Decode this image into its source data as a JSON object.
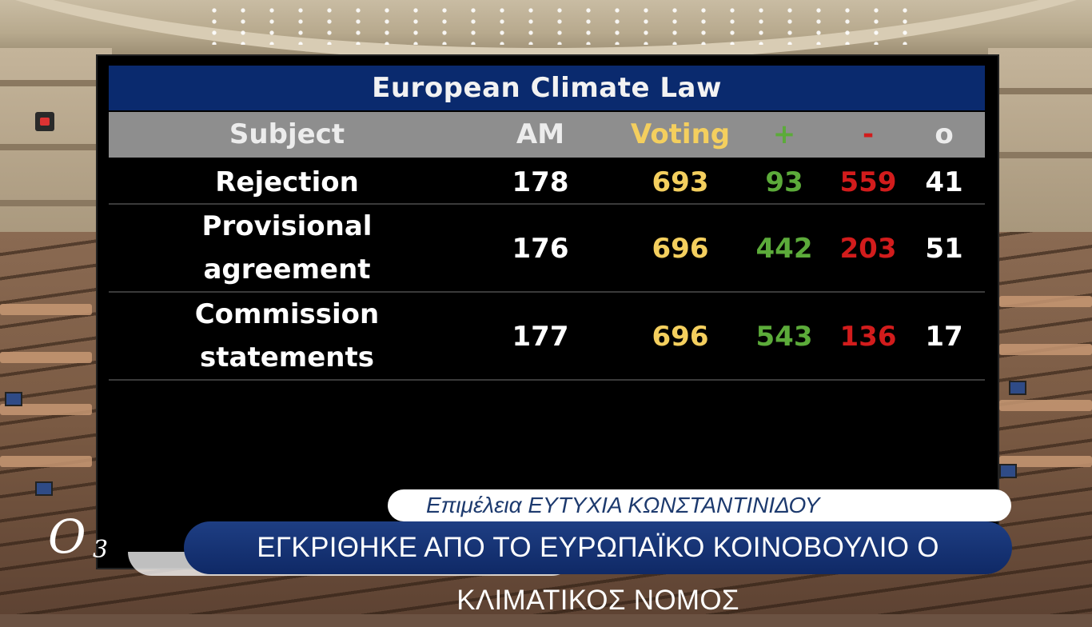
{
  "board": {
    "title": "European Climate Law",
    "headers": {
      "subject": "Subject",
      "am": "AM",
      "voting": "Voting",
      "plus": "+",
      "minus": "-",
      "abstain": "o"
    },
    "rows": [
      {
        "subject_lines": [
          "Rejection"
        ],
        "am": "178",
        "voting": "693",
        "plus": "93",
        "minus": "559",
        "abstain": "41"
      },
      {
        "subject_lines": [
          "Provisional",
          "agreement"
        ],
        "am": "176",
        "voting": "696",
        "plus": "442",
        "minus": "203",
        "abstain": "51"
      },
      {
        "subject_lines": [
          "Commission",
          "statements"
        ],
        "am": "177",
        "voting": "696",
        "plus": "543",
        "minus": "136",
        "abstain": "17"
      }
    ],
    "colors": {
      "title_bg": "#0a2a6e",
      "header_bg": "#8e8e8e",
      "voting": "#f4cf5e",
      "plus": "#5cab3a",
      "minus": "#d21c1c"
    }
  },
  "lower_third": {
    "credit": "Επιμέλεια ΕΥΤΥΧΙΑ ΚΩΝΣΤΑΝΤΙΝΙΔΟΥ",
    "headline": "ΕΓΚΡΙΘΗΚΕ ΑΠΟ ΤΟ ΕΥΡΩΠΑΪΚΟ ΚΟΙΝΟΒΟΥΛΙΟ Ο ΚΛΙΜΑΤΙΚΟΣ ΝΟΜΟΣ"
  },
  "logo": {
    "main": "O",
    "sub": "3"
  }
}
